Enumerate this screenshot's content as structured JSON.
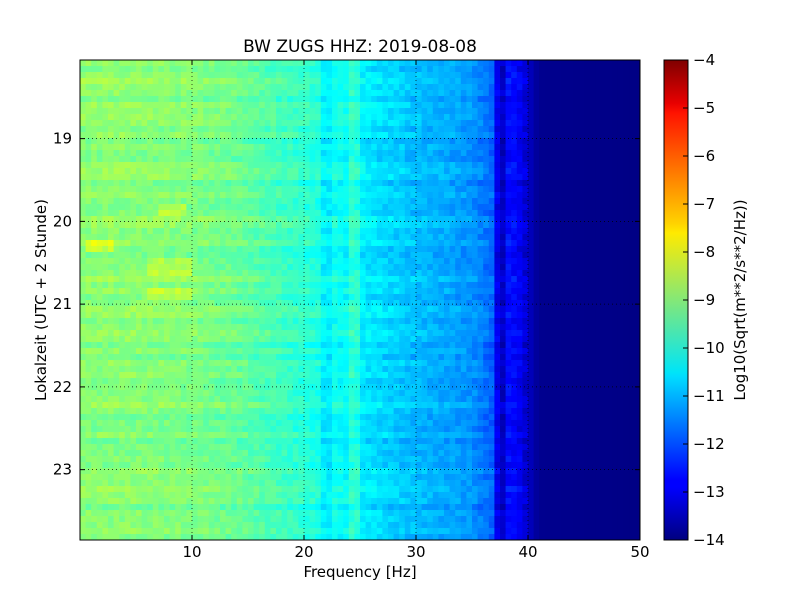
{
  "chart_data": {
    "type": "heatmap",
    "title": "BW ZUGS HHZ: 2019-08-08",
    "xlabel": "Frequency [Hz]",
    "ylabel": "Lokalzeit (UTC + 2 Stunde)",
    "colorbar_label": "Log10(Sqrt(m**2/s**2/Hz))",
    "colormap": "jet",
    "xlim": [
      0,
      50
    ],
    "ylim": [
      18.05,
      23.85
    ],
    "y_inverted": true,
    "clim": [
      -14,
      -4
    ],
    "grid": true,
    "x_ticks": [
      10,
      20,
      30,
      40,
      50
    ],
    "y_ticks": [
      19,
      20,
      21,
      22,
      23
    ],
    "colorbar_ticks": [
      -4,
      -5,
      -6,
      -7,
      -8,
      -9,
      -10,
      -11,
      -12,
      -13,
      -14
    ],
    "x_tick_labels": [
      "10",
      "20",
      "30",
      "40",
      "50"
    ],
    "y_tick_labels": [
      "19",
      "20",
      "21",
      "22",
      "23"
    ],
    "colorbar_tick_labels": [
      "−4",
      "−5",
      "−6",
      "−7",
      "−8",
      "−9",
      "−10",
      "−11",
      "−12",
      "−13",
      "−14"
    ],
    "spectrum_profile": [
      {
        "freq": 0,
        "value": -8.9
      },
      {
        "freq": 5,
        "value": -8.9
      },
      {
        "freq": 10,
        "value": -9.0
      },
      {
        "freq": 14,
        "value": -9.2
      },
      {
        "freq": 18,
        "value": -9.6
      },
      {
        "freq": 20,
        "value": -9.8
      },
      {
        "freq": 22,
        "value": -10.0
      },
      {
        "freq": 25,
        "value": -10.4
      },
      {
        "freq": 28,
        "value": -10.7
      },
      {
        "freq": 30,
        "value": -10.9
      },
      {
        "freq": 33,
        "value": -11.1
      },
      {
        "freq": 35,
        "value": -11.3
      },
      {
        "freq": 37,
        "value": -11.8
      },
      {
        "freq": 38,
        "value": -12.6
      },
      {
        "freq": 39,
        "value": -12.7
      },
      {
        "freq": 40,
        "value": -13.3
      },
      {
        "freq": 41,
        "value": -13.85
      },
      {
        "freq": 50,
        "value": -13.95
      }
    ],
    "narrow_bands": [
      {
        "freq": 21.8,
        "delta": -0.35
      },
      {
        "freq": 24.6,
        "delta": 0.5
      },
      {
        "freq": 37.3,
        "delta": -0.9
      }
    ],
    "time_events": [
      {
        "time": 19.85,
        "freq_range": [
          7,
          9.5
        ],
        "delta": 0.6
      },
      {
        "time": 20.3,
        "freq_range": [
          0.5,
          3
        ],
        "delta": 0.7
      },
      {
        "time": 20.55,
        "freq_range": [
          6,
          10
        ],
        "delta": 0.5
      },
      {
        "time": 20.9,
        "freq_range": [
          6,
          10
        ],
        "delta": 0.5
      }
    ]
  }
}
